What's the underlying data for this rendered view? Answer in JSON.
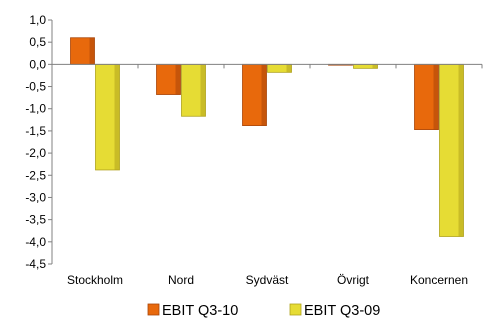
{
  "chart_data": {
    "type": "bar",
    "title": "",
    "xlabel": "",
    "ylabel": "",
    "categories": [
      "Stockholm",
      "Nord",
      "Sydväst",
      "Övrigt",
      "Koncernen"
    ],
    "series": [
      {
        "name": "EBIT Q3-10",
        "values": [
          0.6,
          -0.68,
          -1.38,
          0.0,
          -1.47
        ],
        "color": "#E8690C",
        "shade": "#A9460A"
      },
      {
        "name": "EBIT Q3-09",
        "values": [
          -2.38,
          -1.17,
          -0.18,
          -0.09,
          -3.88
        ],
        "color": "#E6DC34",
        "shade": "#B0A31C"
      }
    ],
    "ylim": [
      -4.5,
      1.0
    ],
    "yticks": [
      "1,0",
      "0,5",
      "0,0",
      "-0,5",
      "-1,0",
      "-1,5",
      "-2,0",
      "-2,5",
      "-3,0",
      "-3,5",
      "-4,0",
      "-4,5"
    ],
    "legend_position": "bottom",
    "grid": false
  }
}
